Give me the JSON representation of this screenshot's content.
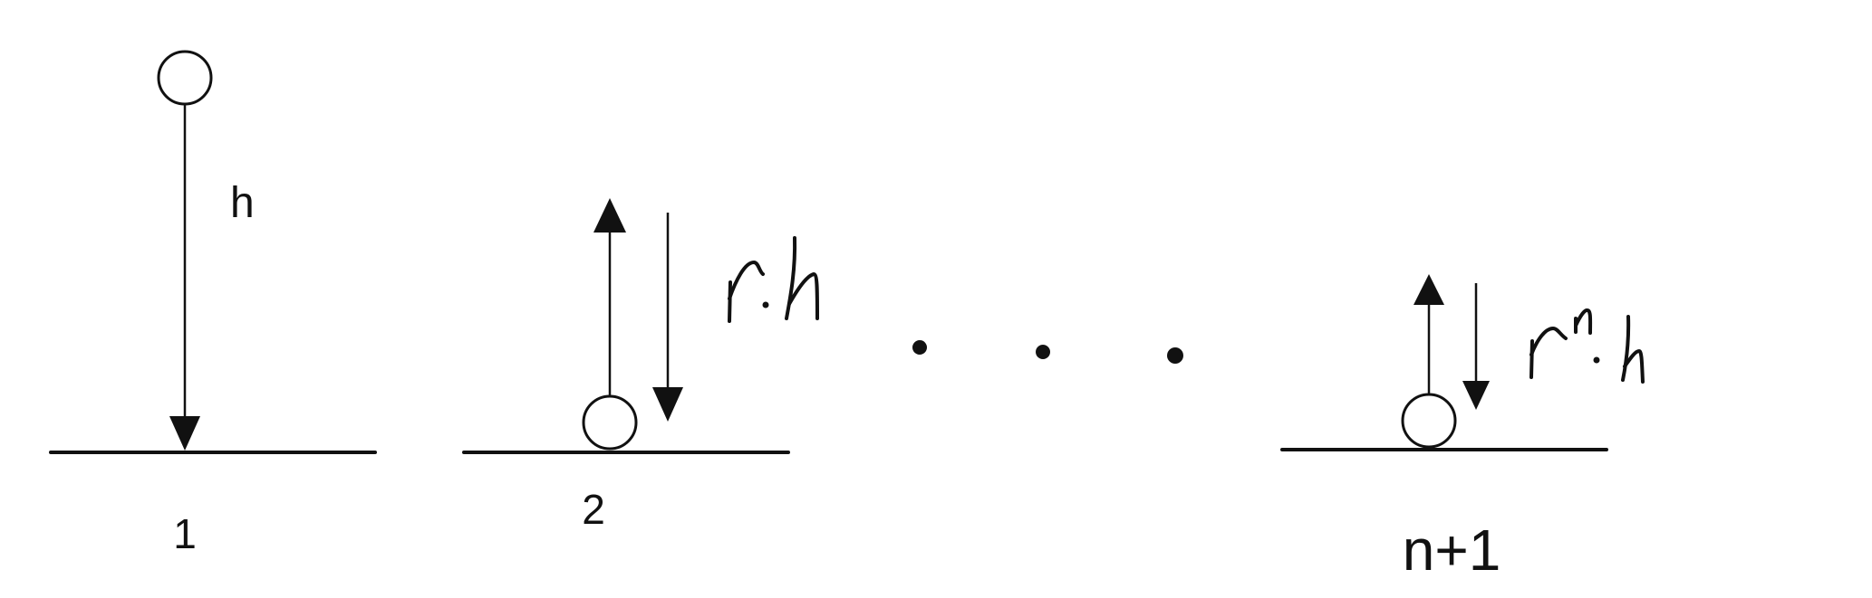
{
  "diagram": {
    "stage1": {
      "number": "1",
      "height_label": "h"
    },
    "stage2": {
      "number": "2"
    },
    "stage3": {
      "number": "n+1"
    }
  }
}
